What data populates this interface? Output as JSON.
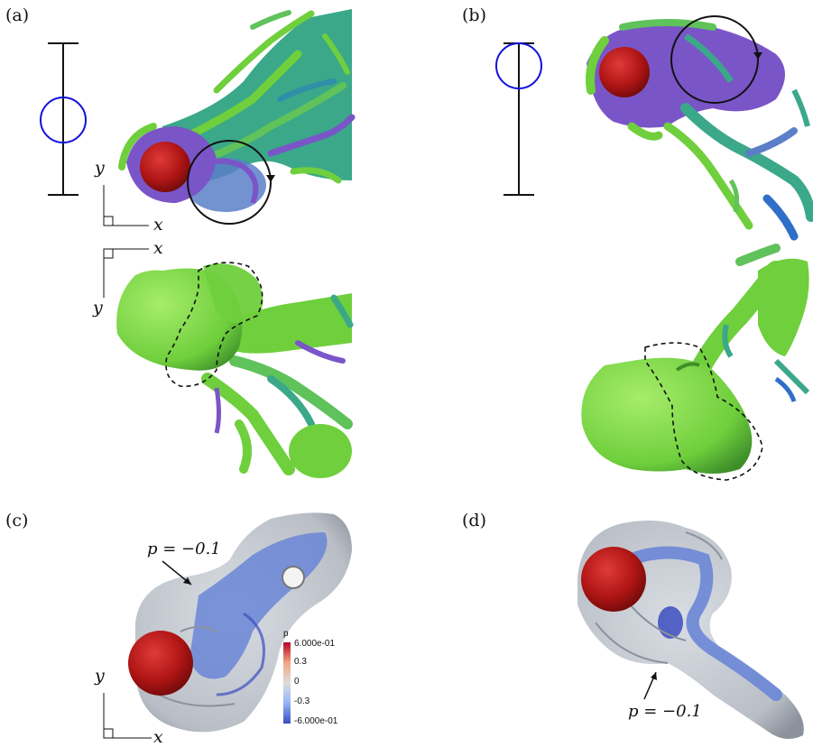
{
  "panels": {
    "a": "(a)",
    "b": "(b)",
    "c": "(c)",
    "d": "(d)"
  },
  "axes": {
    "x": "x",
    "y": "y"
  },
  "annotations": {
    "c_isosurface": "p = −0.1",
    "d_isosurface": "p = −0.1"
  },
  "colorbar": {
    "title": "p",
    "ticks": [
      "6.000e-01",
      "0.3",
      "0",
      "-0.3",
      "-6.000e-01"
    ],
    "colors": [
      "#b40426",
      "#f4c5ad",
      "#dddddd",
      "#aac7fd",
      "#3b4cc0"
    ]
  },
  "colors": {
    "sphere": "#b01515",
    "vortex_green": "#6fcf3c",
    "vortex_teal": "#3aa889",
    "vortex_purple": "#7a55c8",
    "iso_gray": "#b9bec6",
    "iso_blue": "#6a86d6",
    "marker_blue": "#1010dd"
  }
}
